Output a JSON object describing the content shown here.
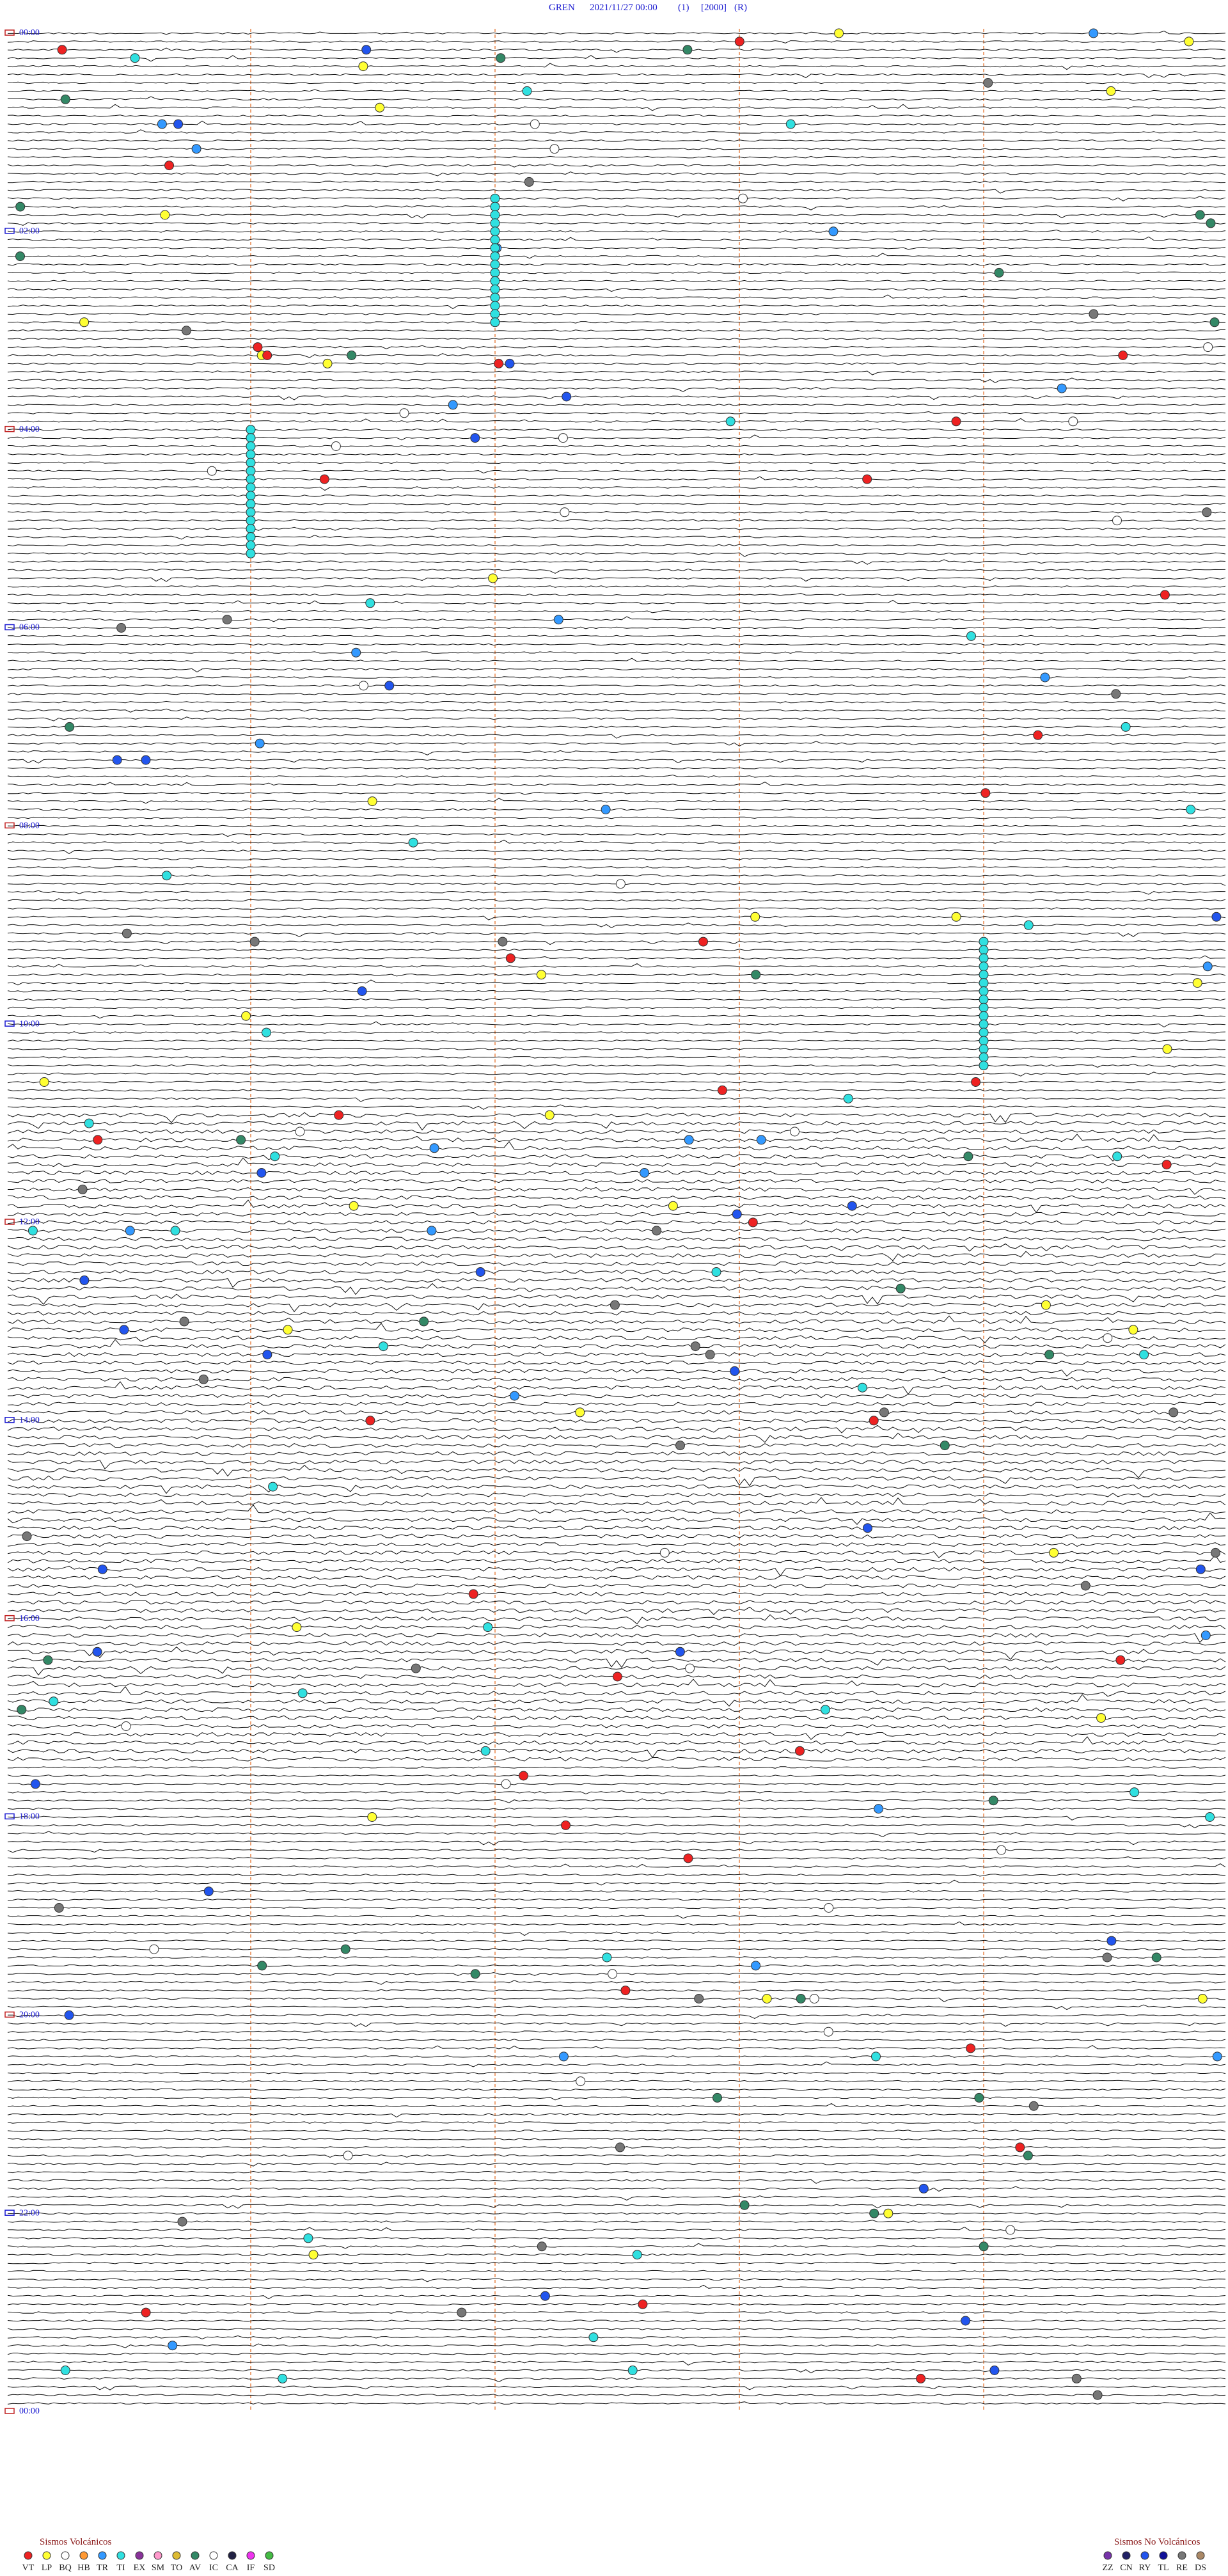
{
  "header": {
    "station": "GREN",
    "datetime": "2021/11/27 00:00",
    "channel": "(1)",
    "scale": "[2000]",
    "mode": "(R)"
  },
  "hour_labels": [
    "00:00",
    "02:00",
    "04:00",
    "06:00",
    "08:00",
    "10:00",
    "12:00",
    "14:00",
    "16:00",
    "18:00",
    "20:00",
    "22:00",
    "00:00"
  ],
  "legend": {
    "volcanic": {
      "title": "Sismos Volcánicos",
      "codes": [
        "VT",
        "LP",
        "BQ",
        "HB",
        "TR",
        "TI",
        "EX",
        "SM",
        "TO",
        "AV",
        "IC",
        "CA",
        "IF",
        "SD"
      ]
    },
    "non_volcanic": {
      "title": "Sismos No Volcánicos",
      "codes": [
        "ZZ",
        "CN",
        "RY",
        "TL",
        "RE",
        "DS"
      ]
    }
  }
}
